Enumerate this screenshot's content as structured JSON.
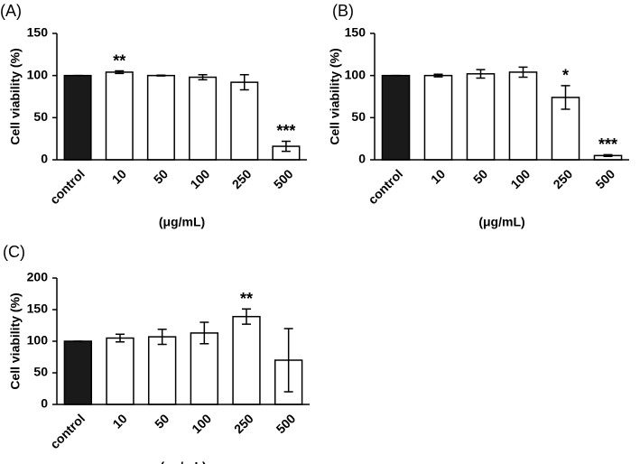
{
  "chart_data": [
    {
      "type": "bar",
      "label": "(A)",
      "ylabel": "Cell viability (%)",
      "xlabel": "(μg/mL)",
      "categories": [
        "control",
        "10",
        "50",
        "100",
        "250",
        "500"
      ],
      "values": [
        100,
        104,
        100,
        98,
        92,
        16
      ],
      "errors": [
        0,
        1.5,
        0.5,
        3,
        9,
        6
      ],
      "significance": [
        null,
        "**",
        null,
        null,
        null,
        "***"
      ],
      "colors": [
        "#1a1a1a",
        "#ffffff",
        "#ffffff",
        "#ffffff",
        "#ffffff",
        "#ffffff"
      ],
      "ylim": [
        0,
        150
      ],
      "yticks": [
        0,
        50,
        100,
        150
      ]
    },
    {
      "type": "bar",
      "label": "(B)",
      "ylabel": "Cell viability (%)",
      "xlabel": "(μg/mL)",
      "categories": [
        "control",
        "10",
        "50",
        "100",
        "250",
        "500"
      ],
      "values": [
        100,
        100,
        102,
        104,
        74,
        5
      ],
      "errors": [
        0,
        1.5,
        5,
        6,
        14,
        1
      ],
      "significance": [
        null,
        null,
        null,
        null,
        "*",
        "***"
      ],
      "colors": [
        "#1a1a1a",
        "#ffffff",
        "#ffffff",
        "#ffffff",
        "#ffffff",
        "#ffffff"
      ],
      "ylim": [
        0,
        150
      ],
      "yticks": [
        0,
        50,
        100,
        150
      ]
    },
    {
      "type": "bar",
      "label": "(C)",
      "ylabel": "Cell viability (%)",
      "xlabel": "(μg/mL)",
      "categories": [
        "control",
        "10",
        "50",
        "100",
        "250",
        "500"
      ],
      "values": [
        100,
        105,
        107,
        113,
        139,
        70
      ],
      "errors": [
        0,
        6,
        12,
        17,
        12,
        50
      ],
      "significance": [
        null,
        null,
        null,
        null,
        "**",
        null
      ],
      "colors": [
        "#1a1a1a",
        "#ffffff",
        "#ffffff",
        "#ffffff",
        "#ffffff",
        "#ffffff"
      ],
      "ylim": [
        0,
        200
      ],
      "yticks": [
        0,
        50,
        100,
        150,
        200
      ]
    }
  ]
}
